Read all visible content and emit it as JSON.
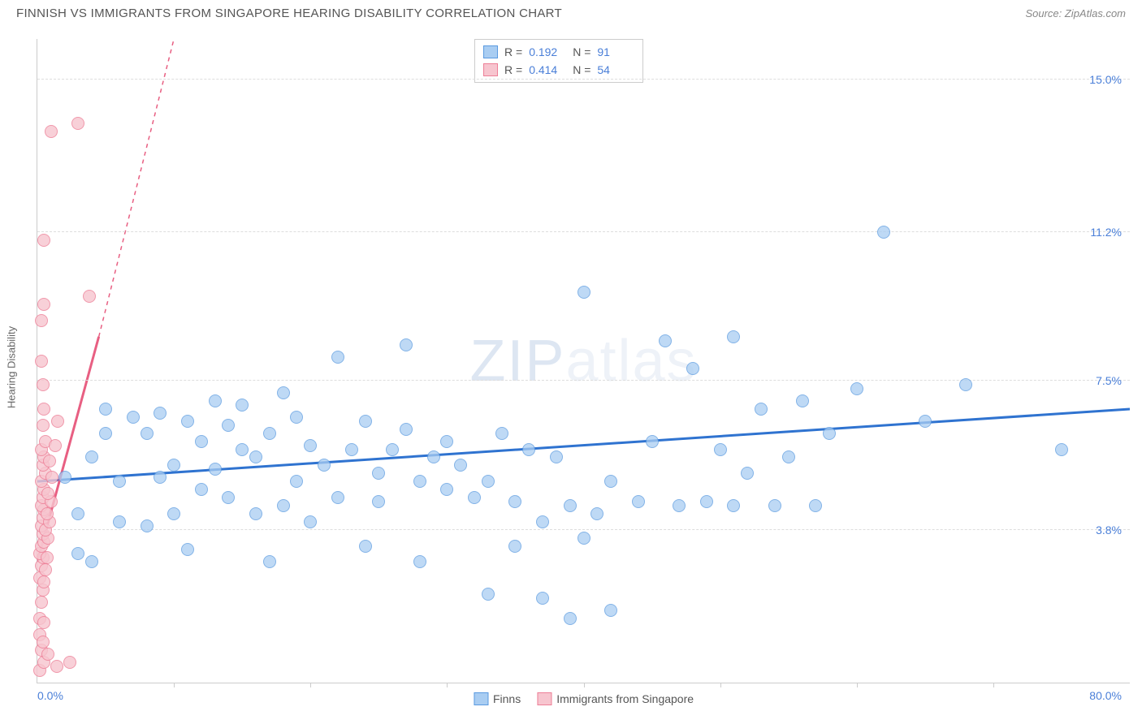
{
  "title": "FINNISH VS IMMIGRANTS FROM SINGAPORE HEARING DISABILITY CORRELATION CHART",
  "source": "Source: ZipAtlas.com",
  "watermark": "ZIPatlas",
  "y_axis_label": "Hearing Disability",
  "chart": {
    "type": "scatter",
    "xlim": [
      0,
      80
    ],
    "ylim": [
      0,
      16
    ],
    "x_min_label": "0.0%",
    "x_max_label": "80.0%",
    "y_ticks": [
      {
        "v": 3.8,
        "label": "3.8%"
      },
      {
        "v": 7.5,
        "label": "7.5%"
      },
      {
        "v": 11.2,
        "label": "11.2%"
      },
      {
        "v": 15.0,
        "label": "15.0%"
      }
    ],
    "x_tick_positions": [
      10,
      20,
      30,
      40,
      50,
      60,
      70
    ],
    "background_color": "#ffffff",
    "grid_color": "#dddddd",
    "axis_color": "#cccccc",
    "label_color": "#4a7fd8"
  },
  "series": [
    {
      "id": "finns",
      "label": "Finns",
      "marker_fill": "#a9cdf2",
      "marker_stroke": "#5a9ae0",
      "marker_opacity": 0.75,
      "marker_size": 16,
      "trend_color": "#2f73d0",
      "trend_width": 3,
      "trend": {
        "x1": 0,
        "y1": 5.0,
        "x2": 80,
        "y2": 6.8,
        "dash_x2": 80,
        "dash_y2": 6.8
      },
      "R": "0.192",
      "N": "91",
      "points": [
        [
          2,
          5.1
        ],
        [
          3,
          3.2
        ],
        [
          3,
          4.2
        ],
        [
          4,
          3.0
        ],
        [
          4,
          5.6
        ],
        [
          5,
          6.2
        ],
        [
          5,
          6.8
        ],
        [
          6,
          4.0
        ],
        [
          6,
          5.0
        ],
        [
          7,
          6.6
        ],
        [
          8,
          6.2
        ],
        [
          8,
          3.9
        ],
        [
          9,
          5.1
        ],
        [
          9,
          6.7
        ],
        [
          10,
          5.4
        ],
        [
          10,
          4.2
        ],
        [
          11,
          6.5
        ],
        [
          11,
          3.3
        ],
        [
          12,
          4.8
        ],
        [
          12,
          6.0
        ],
        [
          13,
          5.3
        ],
        [
          13,
          7.0
        ],
        [
          14,
          4.6
        ],
        [
          14,
          6.4
        ],
        [
          15,
          5.8
        ],
        [
          15,
          6.9
        ],
        [
          16,
          4.2
        ],
        [
          16,
          5.6
        ],
        [
          17,
          6.2
        ],
        [
          17,
          3.0
        ],
        [
          18,
          4.4
        ],
        [
          18,
          7.2
        ],
        [
          19,
          5.0
        ],
        [
          19,
          6.6
        ],
        [
          20,
          5.9
        ],
        [
          20,
          4.0
        ],
        [
          21,
          5.4
        ],
        [
          22,
          8.1
        ],
        [
          22,
          4.6
        ],
        [
          23,
          5.8
        ],
        [
          24,
          6.5
        ],
        [
          24,
          3.4
        ],
        [
          25,
          5.2
        ],
        [
          25,
          4.5
        ],
        [
          26,
          5.8
        ],
        [
          27,
          6.3
        ],
        [
          27,
          8.4
        ],
        [
          28,
          5.0
        ],
        [
          28,
          3.0
        ],
        [
          29,
          5.6
        ],
        [
          30,
          4.8
        ],
        [
          30,
          6.0
        ],
        [
          31,
          5.4
        ],
        [
          32,
          4.6
        ],
        [
          33,
          5.0
        ],
        [
          33,
          2.2
        ],
        [
          34,
          6.2
        ],
        [
          35,
          3.4
        ],
        [
          35,
          4.5
        ],
        [
          36,
          5.8
        ],
        [
          37,
          4.0
        ],
        [
          37,
          2.1
        ],
        [
          38,
          5.6
        ],
        [
          39,
          1.6
        ],
        [
          39,
          4.4
        ],
        [
          40,
          9.7
        ],
        [
          40,
          3.6
        ],
        [
          41,
          4.2
        ],
        [
          42,
          5.0
        ],
        [
          42,
          1.8
        ],
        [
          44,
          4.5
        ],
        [
          45,
          6.0
        ],
        [
          46,
          8.5
        ],
        [
          47,
          4.4
        ],
        [
          48,
          7.8
        ],
        [
          49,
          4.5
        ],
        [
          50,
          5.8
        ],
        [
          51,
          4.4
        ],
        [
          51,
          8.6
        ],
        [
          52,
          5.2
        ],
        [
          53,
          6.8
        ],
        [
          54,
          4.4
        ],
        [
          55,
          5.6
        ],
        [
          56,
          7.0
        ],
        [
          57,
          4.4
        ],
        [
          58,
          6.2
        ],
        [
          60,
          7.3
        ],
        [
          62,
          11.2
        ],
        [
          65,
          6.5
        ],
        [
          68,
          7.4
        ],
        [
          75,
          5.8
        ]
      ]
    },
    {
      "id": "singapore",
      "label": "Immigrants from Singapore",
      "marker_fill": "#f7c5cf",
      "marker_stroke": "#ed7f97",
      "marker_opacity": 0.8,
      "marker_size": 16,
      "trend_color": "#e85f82",
      "trend_width": 3,
      "trend": {
        "x1": 0,
        "y1": 3.0,
        "x2": 4.5,
        "y2": 8.6,
        "dash_x2": 10,
        "dash_y2": 16
      },
      "R": "0.414",
      "N": "54",
      "points": [
        [
          0.2,
          0.3
        ],
        [
          0.3,
          0.8
        ],
        [
          0.2,
          1.2
        ],
        [
          0.4,
          1.0
        ],
        [
          0.2,
          1.6
        ],
        [
          0.5,
          1.5
        ],
        [
          0.3,
          2.0
        ],
        [
          0.4,
          2.3
        ],
        [
          0.2,
          2.6
        ],
        [
          0.5,
          2.5
        ],
        [
          0.3,
          2.9
        ],
        [
          0.6,
          2.8
        ],
        [
          0.4,
          3.1
        ],
        [
          0.2,
          3.2
        ],
        [
          0.7,
          3.1
        ],
        [
          0.3,
          3.4
        ],
        [
          0.5,
          3.5
        ],
        [
          0.4,
          3.7
        ],
        [
          0.8,
          3.6
        ],
        [
          0.3,
          3.9
        ],
        [
          0.6,
          3.8
        ],
        [
          0.4,
          4.1
        ],
        [
          0.9,
          4.0
        ],
        [
          0.5,
          4.3
        ],
        [
          0.3,
          4.4
        ],
        [
          0.7,
          4.2
        ],
        [
          0.4,
          4.6
        ],
        [
          1.0,
          4.5
        ],
        [
          0.5,
          4.8
        ],
        [
          0.3,
          5.0
        ],
        [
          0.8,
          4.7
        ],
        [
          0.6,
          5.2
        ],
        [
          0.4,
          5.4
        ],
        [
          1.1,
          5.1
        ],
        [
          0.5,
          5.6
        ],
        [
          0.3,
          5.8
        ],
        [
          0.9,
          5.5
        ],
        [
          0.6,
          6.0
        ],
        [
          1.3,
          5.9
        ],
        [
          0.4,
          6.4
        ],
        [
          0.5,
          6.8
        ],
        [
          1.5,
          6.5
        ],
        [
          0.4,
          7.4
        ],
        [
          0.3,
          8.0
        ],
        [
          0.5,
          9.4
        ],
        [
          0.3,
          9.0
        ],
        [
          0.5,
          11.0
        ],
        [
          3.8,
          9.6
        ],
        [
          1.0,
          13.7
        ],
        [
          3.0,
          13.9
        ],
        [
          0.5,
          0.5
        ],
        [
          0.8,
          0.7
        ],
        [
          1.4,
          0.4
        ],
        [
          2.4,
          0.5
        ]
      ]
    }
  ],
  "legend_top": {
    "R_label": "R =",
    "N_label": "N ="
  },
  "legend_bottom": [
    {
      "series": "finns"
    },
    {
      "series": "singapore"
    }
  ]
}
